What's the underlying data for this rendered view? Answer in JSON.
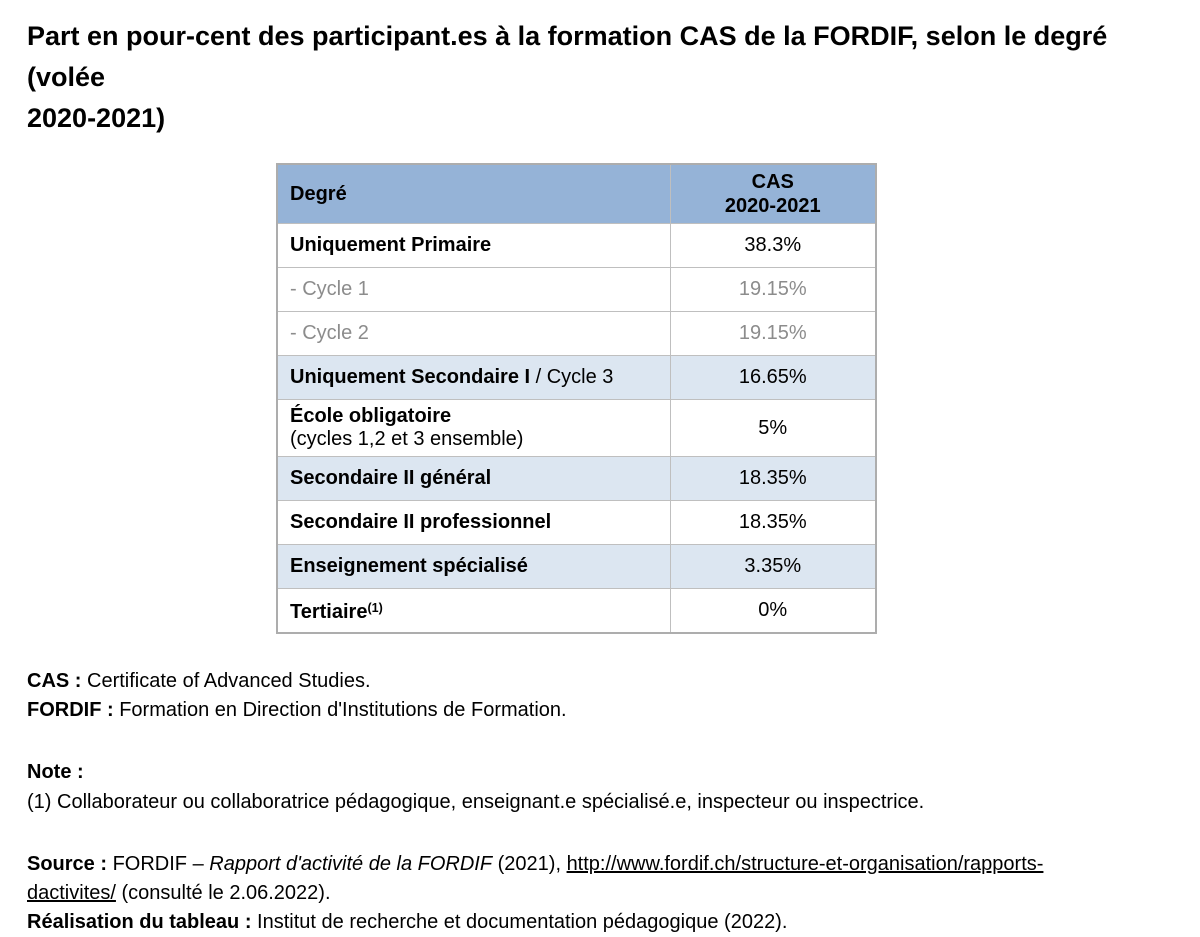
{
  "title": {
    "line1": "Part en pour-cent des participant.es à la formation CAS de la FORDIF, selon le degré (volée",
    "line2": "2020-2021)"
  },
  "table": {
    "header": {
      "col1": "Degré",
      "col2_line1": "CAS",
      "col2_line2": "2020-2021"
    },
    "rows": [
      {
        "main": "Uniquement Primaire",
        "rest": "",
        "sup": "",
        "line2": "",
        "value": "38.3%",
        "variant": "white",
        "muted": false
      },
      {
        "main": "- Cycle 1",
        "rest": "",
        "sup": "",
        "line2": "",
        "value": "19.15%",
        "variant": "white",
        "muted": true
      },
      {
        "main": "- Cycle 2",
        "rest": "",
        "sup": "",
        "line2": "",
        "value": "19.15%",
        "variant": "white",
        "muted": true
      },
      {
        "main": "Uniquement Secondaire I",
        "rest": " / Cycle 3",
        "sup": "",
        "line2": "",
        "value": "16.65%",
        "variant": "blue",
        "muted": false
      },
      {
        "main": "École obligatoire",
        "rest": "",
        "sup": "",
        "line2": "(cycles 1,2 et 3 ensemble)",
        "value": "5%",
        "variant": "white",
        "muted": false
      },
      {
        "main": "Secondaire II général",
        "rest": "",
        "sup": "",
        "line2": "",
        "value": "18.35%",
        "variant": "blue",
        "muted": false
      },
      {
        "main": "Secondaire II professionnel",
        "rest": "",
        "sup": "",
        "line2": "",
        "value": "18.35%",
        "variant": "white",
        "muted": false
      },
      {
        "main": "Enseignement spécialisé",
        "rest": "",
        "sup": "",
        "line2": "",
        "value": "3.35%",
        "variant": "blue",
        "muted": false
      },
      {
        "main": "Tertiaire",
        "rest": "",
        "sup": "(1)",
        "line2": "",
        "value": "0%",
        "variant": "white",
        "muted": false
      }
    ]
  },
  "glossary": {
    "cas_term": "CAS :",
    "cas_def": " Certificate of Advanced Studies.",
    "fordif_term": "FORDIF :",
    "fordif_def": " Formation en Direction d'Institutions de Formation."
  },
  "note": {
    "label": "Note :",
    "text": "(1) Collaborateur ou collaboratrice pédagogique, enseignant.e spécialisé.e, inspecteur ou inspectrice."
  },
  "source": {
    "label": "Source :",
    "pre": " FORDIF – ",
    "italic_title": "Rapport d'activité de la FORDIF",
    "mid": " (2021), ",
    "link_line1": "http://www.fordif.ch/structure-et-organisation/rapports-",
    "link_line2": "dactivites/",
    "post": " (consulté le 2.06.2022)."
  },
  "realisation": {
    "label": "Réalisation du tableau :",
    "text": " Institut de recherche et documentation pédagogique (2022)."
  },
  "colors": {
    "header_bg": "#95B3D7",
    "row_alt_bg": "#DCE6F1",
    "border": "#BFBFBF",
    "muted_text": "#8C8C8C"
  }
}
